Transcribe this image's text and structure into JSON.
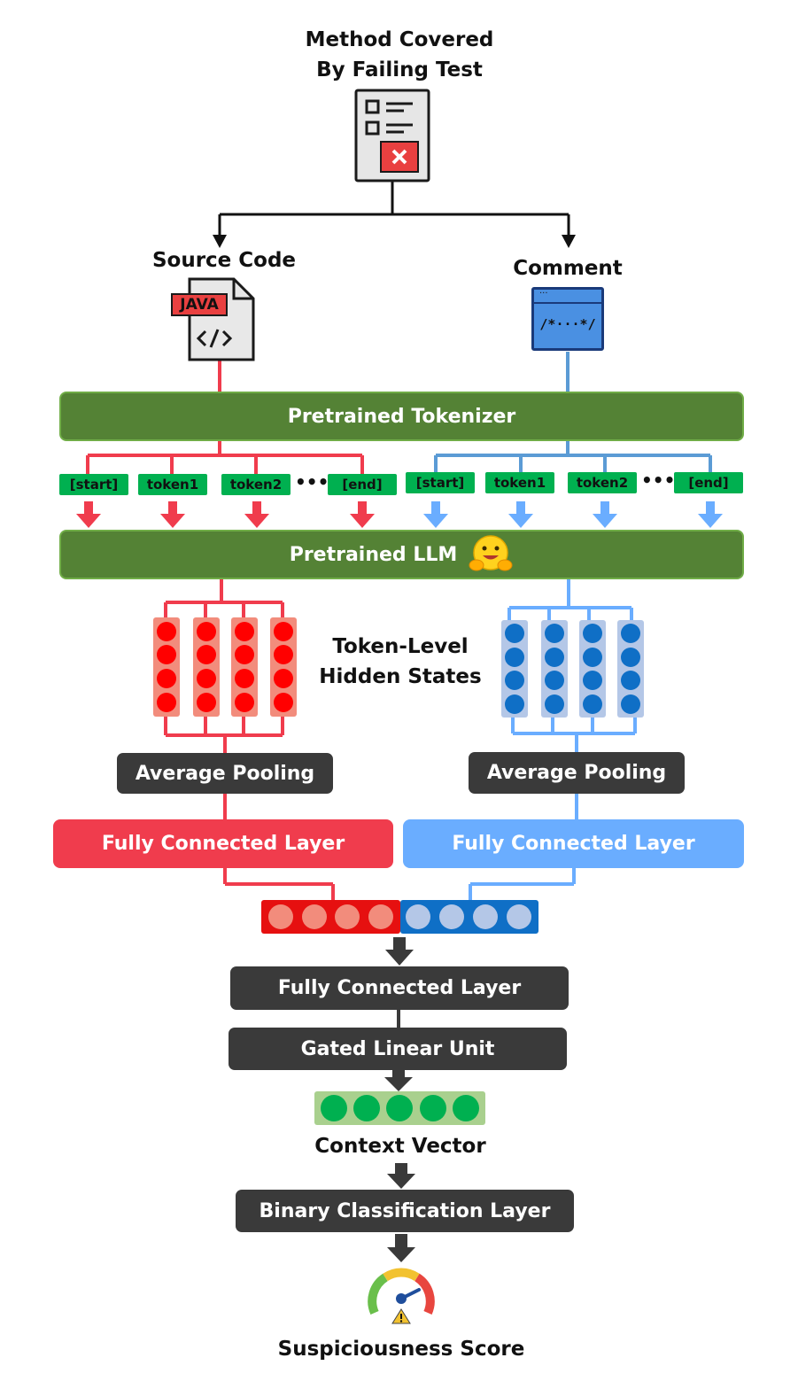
{
  "top_title": [
    "Method Covered",
    "By Failing Test"
  ],
  "source_label": "Source Code",
  "java_badge": "JAVA",
  "comment_label": "Comment",
  "comment_glyph": "/*···*/",
  "tokenizer_label": "Pretrained Tokenizer",
  "tokens_left": [
    "[start]",
    "token1",
    "token2",
    "[end]"
  ],
  "tokens_right": [
    "[start]",
    "token1",
    "token2",
    "[end]"
  ],
  "ellipsis": "•••",
  "llm_label": "Pretrained LLM",
  "hidden_states_label": [
    "Token-Level",
    "Hidden States"
  ],
  "avg_pool_left": "Average Pooling",
  "avg_pool_right": "Average Pooling",
  "fc_left": "Fully Connected Layer",
  "fc_right": "Fully Connected Layer",
  "fc_joint": "Fully Connected Layer",
  "glu": "Gated Linear Unit",
  "context_vector": "Context Vector",
  "binary_layer": "Binary Classification Layer",
  "score_label": "Suspiciousness Score",
  "colors": {
    "red": "#f03c4d",
    "blue": "#6aadff",
    "green_bar": "#548235",
    "token_green": "#00b050",
    "dark": "#3a3a3a"
  }
}
